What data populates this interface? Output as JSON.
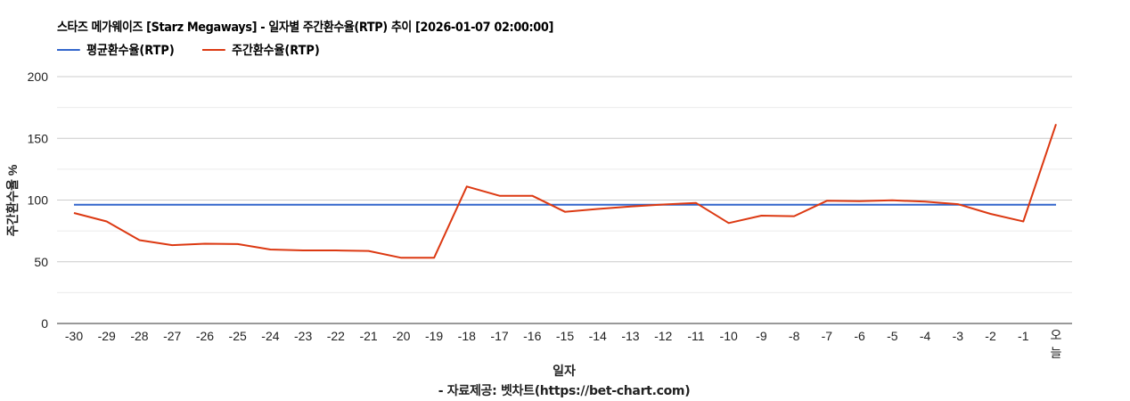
{
  "header": {
    "title": "스타즈 메가웨이즈 [Starz Megaways] - 일자별 주간환수율(RTP) 추이 [2026-01-07 02:00:00]"
  },
  "legend": [
    {
      "label": "평균환수율(RTP)",
      "color": "#3366cc"
    },
    {
      "label": "주간환수율(RTP)",
      "color": "#dc3912"
    }
  ],
  "axes": {
    "y_title": "주간환수율 %",
    "x_title": "일자"
  },
  "footer": {
    "source": "- 자료제공: 벳차트(https://bet-chart.com)"
  },
  "chart_data": {
    "type": "line",
    "title": "스타즈 메가웨이즈 [Starz Megaways] - 일자별 주간환수율(RTP) 추이 [2026-01-07 02:00:00]",
    "xlabel": "일자",
    "ylabel": "주간환수율 %",
    "ylim": [
      0,
      200
    ],
    "yticks": [
      0,
      50,
      100,
      150,
      200
    ],
    "grid": true,
    "legend_position": "top-left",
    "categories": [
      "-30",
      "-29",
      "-28",
      "-27",
      "-26",
      "-25",
      "-24",
      "-23",
      "-22",
      "-21",
      "-20",
      "-19",
      "-18",
      "-17",
      "-16",
      "-15",
      "-14",
      "-13",
      "-12",
      "-11",
      "-10",
      "-9",
      "-8",
      "-7",
      "-6",
      "-5",
      "-4",
      "-3",
      "-2",
      "-1",
      "오늘"
    ],
    "series": [
      {
        "name": "평균환수율(RTP)",
        "color": "#3366cc",
        "values": [
          96.2,
          96.2,
          96.2,
          96.2,
          96.2,
          96.2,
          96.2,
          96.2,
          96.2,
          96.2,
          96.2,
          96.2,
          96.2,
          96.2,
          96.2,
          96.2,
          96.2,
          96.2,
          96.2,
          96.2,
          96.2,
          96.2,
          96.2,
          96.2,
          96.2,
          96.2,
          96.2,
          96.2,
          96.2,
          96.2,
          96.2
        ]
      },
      {
        "name": "주간환수율(RTP)",
        "color": "#dc3912",
        "values": [
          89.5,
          82.7,
          67.5,
          63.5,
          64.6,
          64.3,
          59.9,
          59.2,
          59.2,
          58.8,
          53.2,
          53.2,
          111.0,
          103.5,
          103.5,
          90.5,
          92.8,
          94.8,
          96.4,
          97.7,
          81.4,
          87.4,
          86.9,
          99.4,
          99.1,
          99.8,
          98.7,
          96.7,
          88.8,
          82.7,
          161.5
        ]
      }
    ]
  }
}
